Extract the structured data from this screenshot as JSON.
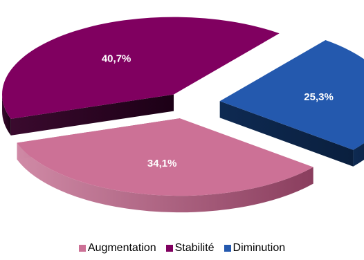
{
  "chart_data": {
    "type": "pie",
    "style": "3d-exploded",
    "slices": [
      {
        "name": "Augmentation",
        "value": 34.1,
        "label": "34,1%",
        "color": "#cc7196"
      },
      {
        "name": "Stabilité",
        "value": 40.7,
        "label": "40,7%",
        "color": "#800060"
      },
      {
        "name": "Diminution",
        "value": 25.3,
        "label": "25,3%",
        "color": "#2459ae"
      }
    ],
    "legend_position": "bottom"
  }
}
